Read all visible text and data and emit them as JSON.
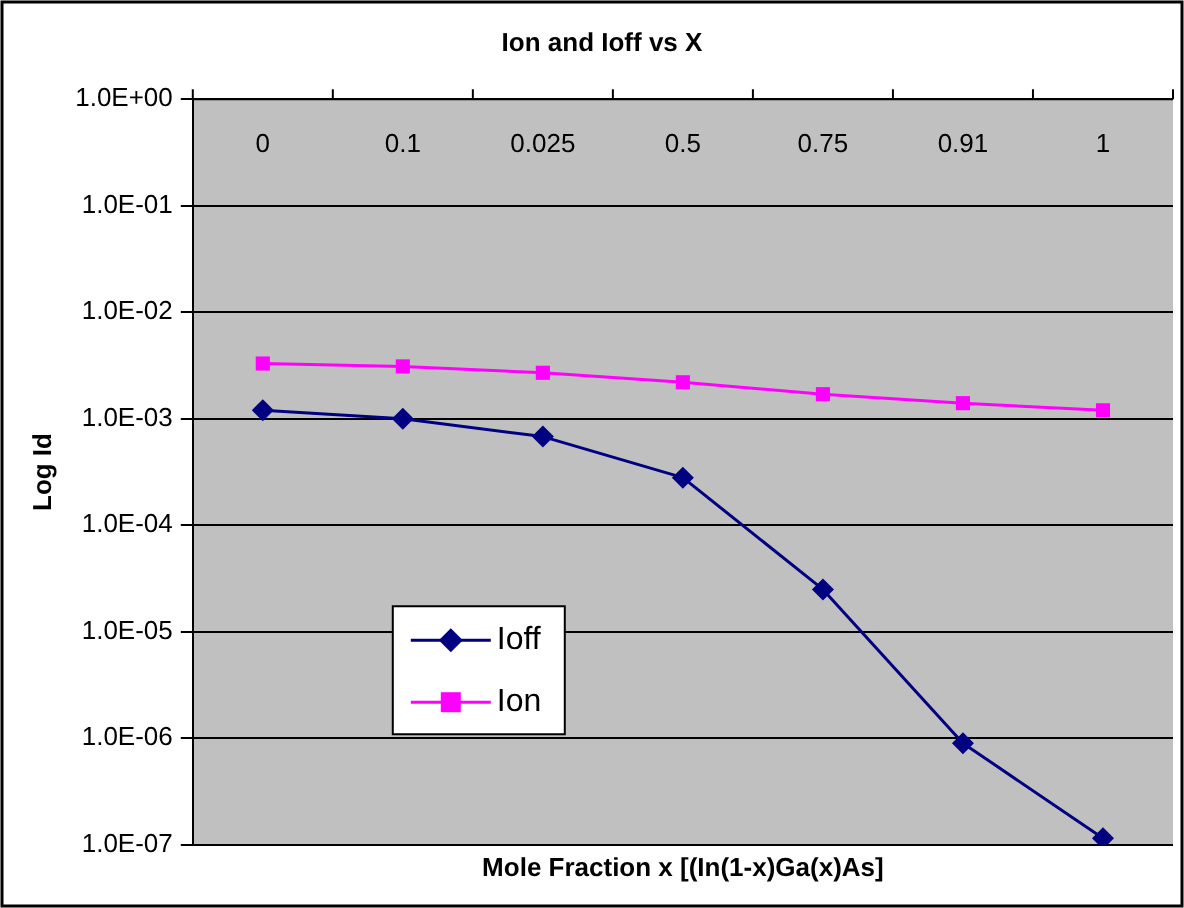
{
  "chart_data": {
    "type": "line",
    "title": "Ion and Ioff vs X",
    "xlabel": "Mole Fraction x [(In(1-x)Ga(x)As]",
    "ylabel": "Log Id",
    "categories": [
      "0",
      "0.1",
      "0.025",
      "0.5",
      "0.75",
      "0.91",
      "1"
    ],
    "series": [
      {
        "name": "Ioff",
        "color": "#000080",
        "marker": "diamond",
        "values": [
          0.0012,
          0.001,
          0.00068,
          0.00028,
          2.5e-05,
          9e-07,
          1.15e-07
        ]
      },
      {
        "name": "Ion",
        "color": "#ff00ff",
        "marker": "square",
        "values": [
          0.0033,
          0.0031,
          0.0027,
          0.0022,
          0.0017,
          0.0014,
          0.0012
        ]
      }
    ],
    "log": true,
    "ylim": [
      1e-07,
      1
    ],
    "yticks": [
      {
        "value": 1e-07,
        "label": "1.0E-07"
      },
      {
        "value": 1e-06,
        "label": "1.0E-06"
      },
      {
        "value": 1e-05,
        "label": "1.0E-05"
      },
      {
        "value": 0.0001,
        "label": "1.0E-04"
      },
      {
        "value": 0.001,
        "label": "1.0E-03"
      },
      {
        "value": 0.01,
        "label": "1.0E-02"
      },
      {
        "value": 0.1,
        "label": "1.0E-01"
      },
      {
        "value": 1,
        "label": "1.0E+00"
      }
    ],
    "grid": "y",
    "legend": "left",
    "line_style": "solid"
  }
}
